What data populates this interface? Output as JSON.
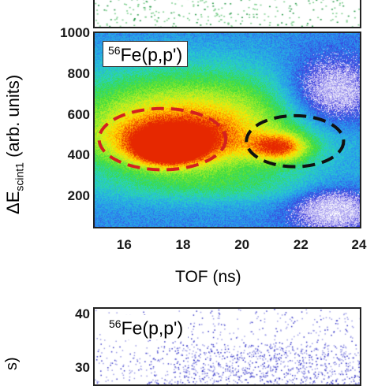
{
  "chart_data": [
    {
      "type": "heatmap",
      "panel": "top-strip",
      "note_series": "scattered green points"
    },
    {
      "type": "heatmap",
      "label": {
        "pre": "56",
        "text": "Fe(p,p')"
      },
      "xlabel": "TOF (ns)",
      "ylabel": {
        "main": "ΔE",
        "sub": "scint1",
        "suffix": " (arb. units)"
      },
      "xlim": [
        15,
        24
      ],
      "ylim": [
        50,
        1000
      ],
      "x_ticks": [
        "16",
        "18",
        "20",
        "22",
        "24"
      ],
      "x_tick_values": [
        16,
        18,
        20,
        22,
        24
      ],
      "y_ticks": [
        "1000",
        "800",
        "600",
        "400",
        "200"
      ],
      "y_tick_values": [
        1000,
        800,
        600,
        400,
        200
      ],
      "hotspots": [
        {
          "x": 17.5,
          "y": 430,
          "intensity": 1.0
        },
        {
          "x": 21.3,
          "y": 440,
          "intensity": 0.75
        }
      ],
      "ellipses": [
        {
          "cx": 17.3,
          "cy": 480,
          "rx": 2.15,
          "ry": 150,
          "color": "#d42020"
        },
        {
          "cx": 21.8,
          "cy": 470,
          "rx": 1.65,
          "ry": 125,
          "color": "#111111"
        }
      ],
      "colors": {
        "ellipse_red": "#d42020",
        "ellipse_black": "#111111"
      }
    },
    {
      "type": "scatter",
      "label": {
        "pre": "56",
        "text": "Fe(p,p')"
      },
      "ylabel_partial": "s)",
      "y_ticks": [
        "40",
        "30"
      ],
      "y_tick_values": [
        40,
        30
      ],
      "ylim": [
        27,
        41
      ]
    }
  ]
}
